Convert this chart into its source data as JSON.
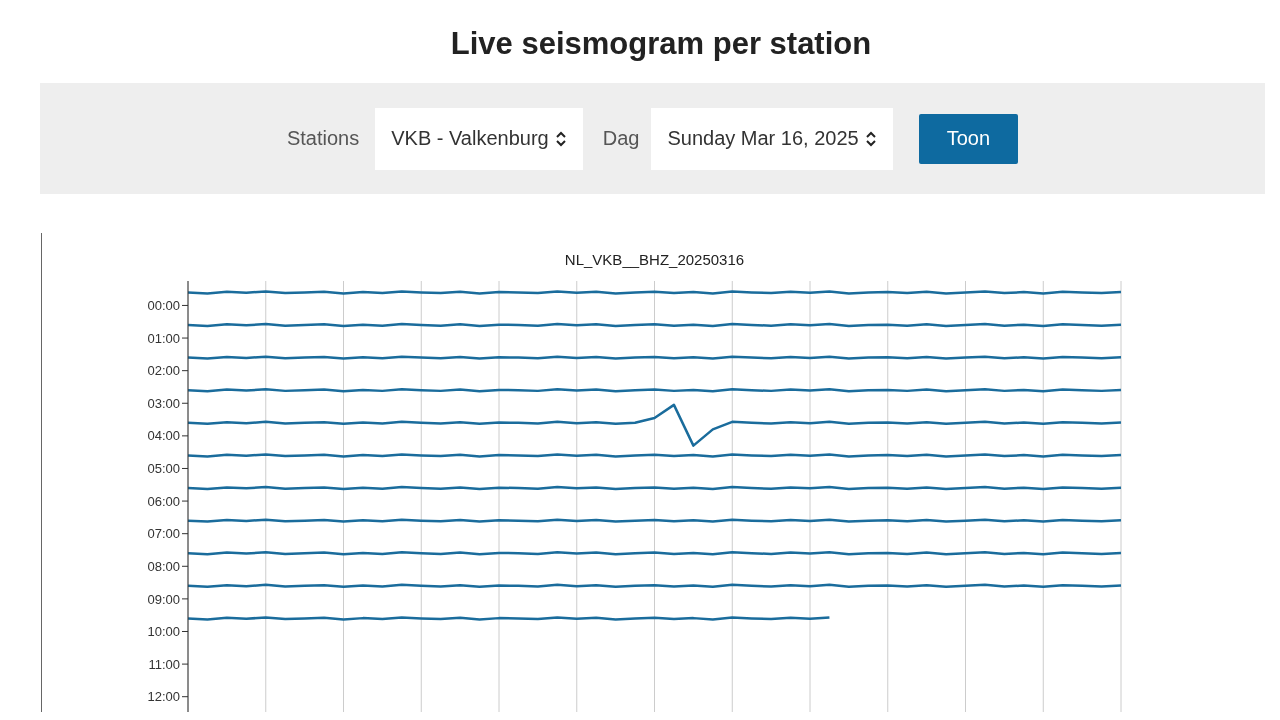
{
  "chart_data": {
    "type": "line",
    "title": "Live seismogram per station",
    "subtitle": "NL_VKB__BHZ_20250316",
    "annotations": [
      "Stations",
      "VKB - Valkenburg",
      "Dag",
      "Sunday Mar 16, 2025",
      "Toon"
    ],
    "categories": [
      null,
      null,
      null,
      null,
      null,
      null,
      null,
      null,
      null,
      null,
      null,
      null,
      null,
      null,
      null,
      null,
      null,
      null,
      null,
      null,
      null,
      null,
      null,
      null,
      null,
      null,
      null,
      null,
      null,
      null,
      null,
      null,
      null,
      null,
      null,
      null,
      null,
      null,
      null,
      null,
      null,
      null,
      null,
      null,
      null,
      null,
      null,
      null,
      null
    ],
    "series": [
      {
        "color": "#1a6c9c",
        "values": [
          -0.4,
          -0.37,
          -0.42,
          -0.39,
          -0.43,
          -0.38,
          -0.4,
          -0.42,
          -0.37,
          -0.41,
          -0.38,
          -0.43,
          -0.4,
          -0.38,
          -0.42,
          -0.37,
          -0.41,
          -0.4,
          -0.38,
          -0.43,
          -0.39,
          -0.42,
          -0.37,
          -0.4,
          -0.42,
          -0.38,
          -0.41,
          -0.37,
          -0.43,
          -0.4,
          -0.38,
          -0.42,
          -0.39,
          -0.43,
          -0.37,
          -0.4,
          -0.41,
          -0.38,
          -0.42,
          -0.37,
          -0.4,
          -0.43,
          -0.38,
          -0.41,
          -0.37,
          -0.42,
          -0.4,
          -0.38,
          -0.41
        ]
      },
      {
        "color": "#1a6c9c",
        "values": [
          0.6,
          0.63,
          0.58,
          0.61,
          0.57,
          0.62,
          0.6,
          0.58,
          0.63,
          0.59,
          0.62,
          0.57,
          0.6,
          0.62,
          0.58,
          0.63,
          0.59,
          0.6,
          0.62,
          0.57,
          0.61,
          0.58,
          0.63,
          0.6,
          0.58,
          0.62,
          0.59,
          0.63,
          0.57,
          0.6,
          0.62,
          0.58,
          0.61,
          0.57,
          0.63,
          0.6,
          0.59,
          0.62,
          0.58,
          0.63,
          0.6,
          0.57,
          0.62,
          0.59,
          0.63,
          0.58,
          0.6,
          0.62,
          0.59
        ]
      },
      {
        "color": "#1a6c9c",
        "values": [
          1.6,
          1.63,
          1.58,
          1.61,
          1.57,
          1.62,
          1.6,
          1.58,
          1.63,
          1.59,
          1.62,
          1.57,
          1.6,
          1.62,
          1.58,
          1.63,
          1.59,
          1.6,
          1.62,
          1.57,
          1.61,
          1.58,
          1.63,
          1.6,
          1.58,
          1.62,
          1.59,
          1.63,
          1.57,
          1.6,
          1.62,
          1.58,
          1.61,
          1.57,
          1.63,
          1.6,
          1.59,
          1.62,
          1.58,
          1.63,
          1.6,
          1.57,
          1.62,
          1.59,
          1.63,
          1.58,
          1.6,
          1.62,
          1.59
        ]
      },
      {
        "color": "#1a6c9c",
        "values": [
          2.6,
          2.63,
          2.58,
          2.61,
          2.57,
          2.62,
          2.6,
          2.58,
          2.63,
          2.59,
          2.62,
          2.57,
          2.6,
          2.62,
          2.58,
          2.63,
          2.59,
          2.6,
          2.62,
          2.57,
          2.61,
          2.58,
          2.63,
          2.6,
          2.58,
          2.62,
          2.59,
          2.63,
          2.57,
          2.6,
          2.62,
          2.58,
          2.61,
          2.57,
          2.63,
          2.6,
          2.59,
          2.62,
          2.58,
          2.63,
          2.6,
          2.57,
          2.62,
          2.59,
          2.63,
          2.58,
          2.6,
          2.62,
          2.59
        ]
      },
      {
        "color": "#1a6c9c",
        "values": [
          3.6,
          3.63,
          3.58,
          3.61,
          3.57,
          3.62,
          3.6,
          3.58,
          3.63,
          3.59,
          3.62,
          3.57,
          3.6,
          3.62,
          3.58,
          3.63,
          3.59,
          3.6,
          3.62,
          3.57,
          3.61,
          3.58,
          3.63,
          3.6,
          3.45,
          3.05,
          4.3,
          3.8,
          3.57,
          3.6,
          3.62,
          3.58,
          3.61,
          3.57,
          3.63,
          3.6,
          3.59,
          3.62,
          3.58,
          3.63,
          3.6,
          3.57,
          3.62,
          3.59,
          3.63,
          3.58,
          3.6,
          3.62,
          3.59
        ]
      },
      {
        "color": "#1a6c9c",
        "values": [
          4.6,
          4.63,
          4.58,
          4.61,
          4.57,
          4.62,
          4.6,
          4.58,
          4.63,
          4.59,
          4.62,
          4.57,
          4.6,
          4.62,
          4.58,
          4.63,
          4.59,
          4.6,
          4.62,
          4.57,
          4.61,
          4.58,
          4.63,
          4.6,
          4.58,
          4.62,
          4.59,
          4.63,
          4.57,
          4.6,
          4.62,
          4.58,
          4.61,
          4.57,
          4.63,
          4.6,
          4.59,
          4.62,
          4.58,
          4.63,
          4.6,
          4.57,
          4.62,
          4.59,
          4.63,
          4.58,
          4.6,
          4.62,
          4.59
        ]
      },
      {
        "color": "#1a6c9c",
        "values": [
          5.6,
          5.63,
          5.58,
          5.61,
          5.57,
          5.62,
          5.6,
          5.58,
          5.63,
          5.59,
          5.62,
          5.57,
          5.6,
          5.62,
          5.58,
          5.63,
          5.59,
          5.6,
          5.62,
          5.57,
          5.61,
          5.58,
          5.63,
          5.6,
          5.58,
          5.62,
          5.59,
          5.63,
          5.57,
          5.6,
          5.62,
          5.58,
          5.61,
          5.57,
          5.63,
          5.6,
          5.59,
          5.62,
          5.58,
          5.63,
          5.6,
          5.57,
          5.62,
          5.59,
          5.63,
          5.58,
          5.6,
          5.62,
          5.59
        ]
      },
      {
        "color": "#1a6c9c",
        "values": [
          6.6,
          6.63,
          6.58,
          6.61,
          6.57,
          6.62,
          6.6,
          6.58,
          6.63,
          6.59,
          6.62,
          6.57,
          6.6,
          6.62,
          6.58,
          6.63,
          6.59,
          6.6,
          6.62,
          6.57,
          6.61,
          6.58,
          6.63,
          6.6,
          6.58,
          6.62,
          6.59,
          6.63,
          6.57,
          6.6,
          6.62,
          6.58,
          6.61,
          6.57,
          6.63,
          6.6,
          6.59,
          6.62,
          6.58,
          6.63,
          6.6,
          6.57,
          6.62,
          6.59,
          6.63,
          6.58,
          6.6,
          6.62,
          6.59
        ]
      },
      {
        "color": "#1a6c9c",
        "values": [
          7.6,
          7.63,
          7.58,
          7.61,
          7.57,
          7.62,
          7.6,
          7.58,
          7.63,
          7.59,
          7.62,
          7.57,
          7.6,
          7.62,
          7.58,
          7.63,
          7.59,
          7.6,
          7.62,
          7.57,
          7.61,
          7.58,
          7.63,
          7.6,
          7.58,
          7.62,
          7.59,
          7.63,
          7.57,
          7.6,
          7.62,
          7.58,
          7.61,
          7.57,
          7.63,
          7.6,
          7.59,
          7.62,
          7.58,
          7.63,
          7.6,
          7.57,
          7.62,
          7.59,
          7.63,
          7.58,
          7.6,
          7.62,
          7.59
        ]
      },
      {
        "color": "#1a6c9c",
        "values": [
          8.6,
          8.63,
          8.58,
          8.61,
          8.57,
          8.62,
          8.6,
          8.58,
          8.63,
          8.59,
          8.62,
          8.57,
          8.6,
          8.62,
          8.58,
          8.63,
          8.59,
          8.6,
          8.62,
          8.57,
          8.61,
          8.58,
          8.63,
          8.6,
          8.58,
          8.62,
          8.59,
          8.63,
          8.57,
          8.6,
          8.62,
          8.58,
          8.61,
          8.57,
          8.63,
          8.6,
          8.59,
          8.62,
          8.58,
          8.63,
          8.6,
          8.57,
          8.62,
          8.59,
          8.63,
          8.58,
          8.6,
          8.62,
          8.59
        ]
      },
      {
        "color": "#1a6c9c",
        "values": [
          9.6,
          9.63,
          9.58,
          9.61,
          9.57,
          9.62,
          9.6,
          9.58,
          9.63,
          9.59,
          9.62,
          9.57,
          9.6,
          9.62,
          9.58,
          9.63,
          9.59,
          9.6,
          9.62,
          9.57,
          9.61,
          9.58,
          9.63,
          9.6,
          9.58,
          9.62,
          9.59,
          9.63,
          9.57,
          9.6,
          9.62,
          9.58,
          9.61,
          9.57,
          null,
          null,
          null,
          null,
          null,
          null,
          null,
          null,
          null,
          null,
          null,
          null,
          null,
          null,
          null
        ]
      }
    ],
    "ylim": [
      12.5,
      -0.75
    ],
    "yticks": [
      {
        "value": 0,
        "label": "00:00"
      },
      {
        "value": 1,
        "label": "01:00"
      },
      {
        "value": 2,
        "label": "02:00"
      },
      {
        "value": 3,
        "label": "03:00"
      },
      {
        "value": 4,
        "label": "04:00"
      },
      {
        "value": 5,
        "label": "05:00"
      },
      {
        "value": 6,
        "label": "06:00"
      },
      {
        "value": 7,
        "label": "07:00"
      },
      {
        "value": 8,
        "label": "08:00"
      },
      {
        "value": 9,
        "label": "09:00"
      },
      {
        "value": 10,
        "label": "10:00"
      },
      {
        "value": 11,
        "label": "11:00"
      },
      {
        "value": 12,
        "label": "12:00"
      }
    ],
    "grid": "x",
    "legend": false,
    "marker": "none",
    "line_style": "solid"
  }
}
